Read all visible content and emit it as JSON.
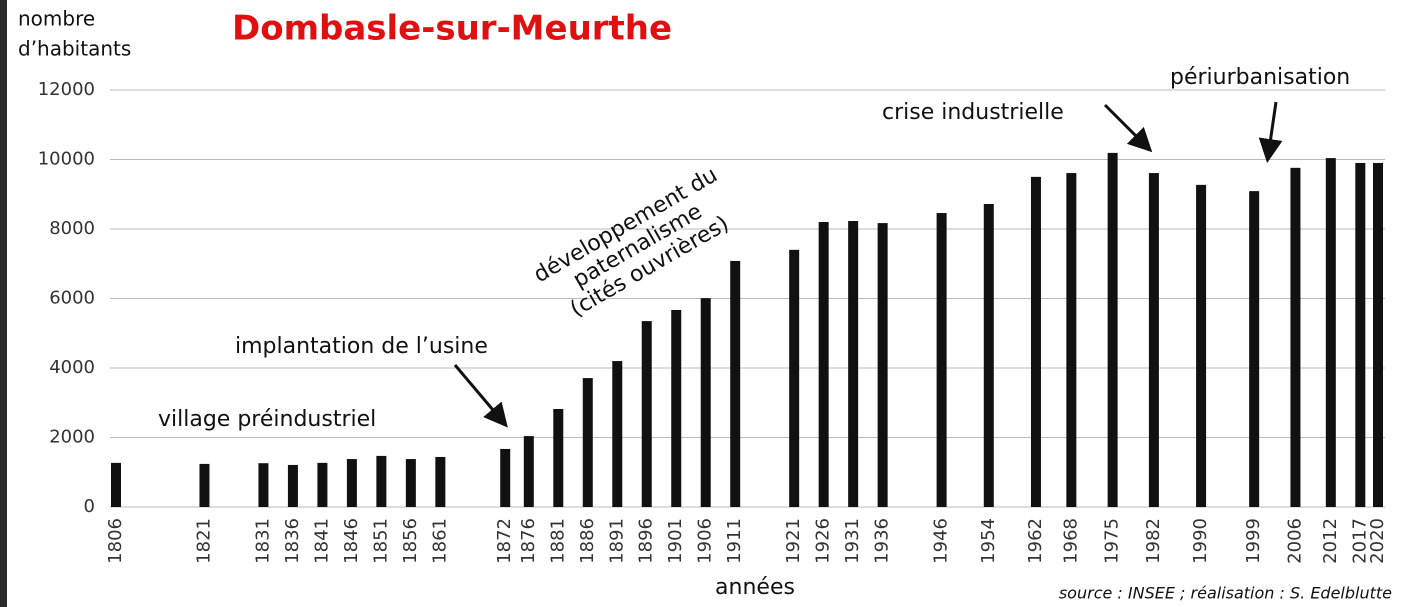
{
  "chart_data": {
    "type": "bar",
    "title": "Dombasle-sur-Meurthe",
    "ylabel": [
      "nombre",
      "d’habitants"
    ],
    "xlabel": "années",
    "source": "source : INSEE ; réalisation : S. Edelblutte",
    "annotations": [
      {
        "text": [
          "village préindustriel"
        ]
      },
      {
        "text": [
          "implantation de l’usine"
        ]
      },
      {
        "text": [
          "développement du",
          "paternalisme",
          "(cités ouvrières)"
        ]
      },
      {
        "text": [
          "crise industrielle"
        ]
      },
      {
        "text": [
          "périurbanisation"
        ]
      }
    ],
    "x": [
      1806,
      1821,
      1831,
      1836,
      1841,
      1846,
      1851,
      1856,
      1861,
      1872,
      1876,
      1881,
      1886,
      1891,
      1896,
      1901,
      1906,
      1911,
      1921,
      1926,
      1931,
      1936,
      1946,
      1954,
      1962,
      1968,
      1975,
      1982,
      1990,
      1999,
      2006,
      2012,
      2017,
      2020
    ],
    "values": [
      1270,
      1240,
      1260,
      1210,
      1270,
      1380,
      1470,
      1380,
      1440,
      1670,
      2040,
      2820,
      3710,
      4200,
      5350,
      5670,
      6010,
      7080,
      7400,
      8200,
      8230,
      8170,
      8460,
      8720,
      9500,
      9610,
      10190,
      9610,
      9270,
      9090,
      9760,
      10040,
      9900,
      9900
    ],
    "color": "#111111",
    "xlim": [
      1806,
      2020
    ],
    "ylim": [
      0,
      12000
    ],
    "yticks": [
      0,
      2000,
      4000,
      6000,
      8000,
      10000,
      12000
    ],
    "grid": true
  }
}
